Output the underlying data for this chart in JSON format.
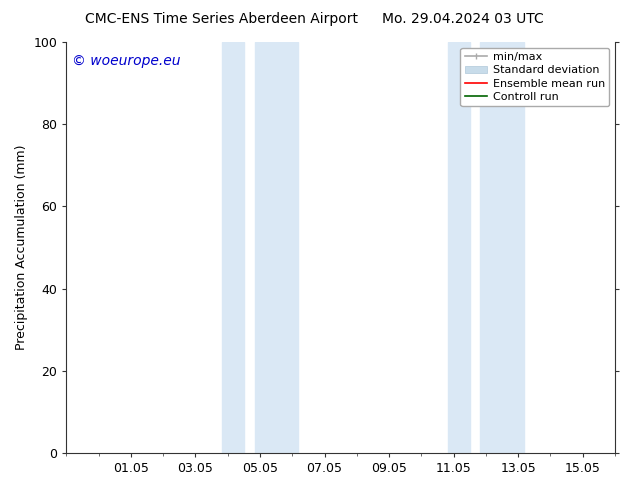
{
  "title": "CMC-ENS Time Series Aberdeen Airport",
  "title_right": "Mo. 29.04.2024 03 UTC",
  "ylabel": "Precipitation Accumulation (mm)",
  "ylim": [
    0,
    100
  ],
  "yticks": [
    0,
    20,
    40,
    60,
    80,
    100
  ],
  "xtick_labels": [
    "01.05",
    "03.05",
    "05.05",
    "07.05",
    "09.05",
    "11.05",
    "13.05",
    "15.05"
  ],
  "xtick_positions": [
    1,
    3,
    5,
    7,
    9,
    11,
    13,
    15
  ],
  "xlim_min": -1.0,
  "xlim_max": 16.0,
  "shaded_regions": [
    {
      "xmin": 3.83,
      "xmax": 4.5
    },
    {
      "xmin": 4.83,
      "xmax": 6.17
    },
    {
      "xmin": 10.83,
      "xmax": 11.5
    },
    {
      "xmin": 11.83,
      "xmax": 13.17
    }
  ],
  "shaded_color": "#dae8f5",
  "watermark_text": "© woeurope.eu",
  "watermark_color": "#0000cc",
  "background_color": "#ffffff",
  "font_size_title": 10,
  "font_size_axis": 9,
  "font_size_legend": 8,
  "font_size_watermark": 10,
  "font_size_ylabel": 9
}
